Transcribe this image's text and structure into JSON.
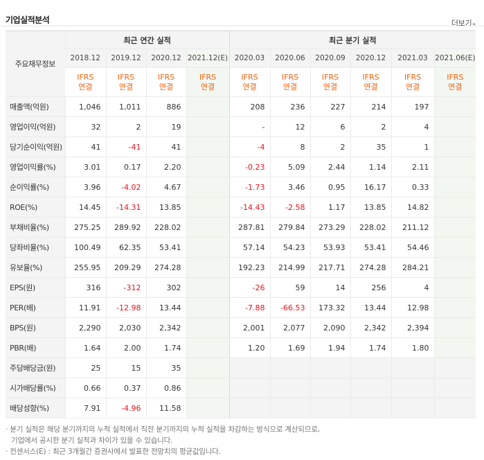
{
  "header": {
    "title": "기업실적분석",
    "more_label": "더보기"
  },
  "table": {
    "row_header": "주요재무정보",
    "annual_group": "최근 연간 실적",
    "quarter_group": "최근 분기 실적",
    "annual_dates": [
      "2018.12",
      "2019.12",
      "2020.12",
      "2021.12(E)"
    ],
    "quarter_dates": [
      "2020.03",
      "2020.06",
      "2020.09",
      "2020.12",
      "2021.03",
      "2021.06(E)"
    ],
    "ifrs_line1": "IFRS",
    "ifrs_line2": "연결",
    "rows": [
      {
        "label": "매출액(억원)",
        "annual": [
          "1,046",
          "1,011",
          "886",
          ""
        ],
        "quarter": [
          "208",
          "236",
          "227",
          "214",
          "197",
          ""
        ]
      },
      {
        "label": "영업이익(억원)",
        "annual": [
          "32",
          "2",
          "19",
          ""
        ],
        "quarter": [
          "-",
          "12",
          "6",
          "2",
          "4",
          ""
        ]
      },
      {
        "label": "당기순이익(억원)",
        "annual": [
          "41",
          "-41",
          "41",
          ""
        ],
        "quarter": [
          "-4",
          "8",
          "2",
          "35",
          "1",
          ""
        ]
      },
      {
        "label": "영업이익률(%)",
        "annual": [
          "3.01",
          "0.17",
          "2.20",
          ""
        ],
        "quarter": [
          "-0.23",
          "5.09",
          "2.44",
          "1.14",
          "2.11",
          ""
        ]
      },
      {
        "label": "순이익률(%)",
        "annual": [
          "3.96",
          "-4.02",
          "4.67",
          ""
        ],
        "quarter": [
          "-1.73",
          "3.46",
          "0.95",
          "16.17",
          "0.33",
          ""
        ]
      },
      {
        "label": "ROE(%)",
        "annual": [
          "14.45",
          "-14.31",
          "13.85",
          ""
        ],
        "quarter": [
          "-14.43",
          "-2.58",
          "1.17",
          "13.85",
          "14.82",
          ""
        ]
      },
      {
        "label": "부채비율(%)",
        "annual": [
          "275.25",
          "289.92",
          "228.02",
          ""
        ],
        "quarter": [
          "287.81",
          "279.84",
          "273.29",
          "228.02",
          "211.12",
          ""
        ]
      },
      {
        "label": "당좌비율(%)",
        "annual": [
          "100.49",
          "62.35",
          "53.41",
          ""
        ],
        "quarter": [
          "57.14",
          "54.23",
          "53.93",
          "53.41",
          "54.46",
          ""
        ]
      },
      {
        "label": "유보율(%)",
        "annual": [
          "255.95",
          "209.29",
          "274.28",
          ""
        ],
        "quarter": [
          "192.23",
          "214.99",
          "217.71",
          "274.28",
          "284.21",
          ""
        ]
      },
      {
        "label": "EPS(원)",
        "annual": [
          "316",
          "-312",
          "302",
          ""
        ],
        "quarter": [
          "-26",
          "59",
          "14",
          "256",
          "4",
          ""
        ]
      },
      {
        "label": "PER(배)",
        "annual": [
          "11.91",
          "-12.98",
          "13.44",
          ""
        ],
        "quarter": [
          "-7.88",
          "-66.53",
          "173.32",
          "13.44",
          "12.98",
          ""
        ]
      },
      {
        "label": "BPS(원)",
        "annual": [
          "2,290",
          "2,030",
          "2,342",
          ""
        ],
        "quarter": [
          "2,001",
          "2,077",
          "2,090",
          "2,342",
          "2,394",
          ""
        ]
      },
      {
        "label": "PBR(배)",
        "annual": [
          "1.64",
          "2.00",
          "1.74",
          ""
        ],
        "quarter": [
          "1.20",
          "1.69",
          "1.94",
          "1.74",
          "1.80",
          ""
        ]
      },
      {
        "label": "주당배당금(원)",
        "annual": [
          "25",
          "15",
          "35",
          ""
        ],
        "quarter": null
      },
      {
        "label": "시가배당률(%)",
        "annual": [
          "0.66",
          "0.37",
          "0.86",
          ""
        ],
        "quarter": null
      },
      {
        "label": "배당성향(%)",
        "annual": [
          "7.91",
          "-4.96",
          "11.58",
          ""
        ],
        "quarter": null
      }
    ]
  },
  "notes": {
    "line1": "분기 실적은 해당 분기까지의 누적 실적에서 직전 분기까지의 누적 실적을 차감하는 방식으로 계산되므로,",
    "line2": "기업에서 공시한 분기 실적과 차이가 있을 수 있습니다.",
    "line3": "컨센서스(E) : 최근 3개월간 증권사에서 발표한 전망치의 평균값입니다."
  },
  "colors": {
    "accent": "#f06312",
    "negative": "#e8131e",
    "estimate_bg": "#f3f7f1",
    "header_bg": "#f4f4f4"
  }
}
